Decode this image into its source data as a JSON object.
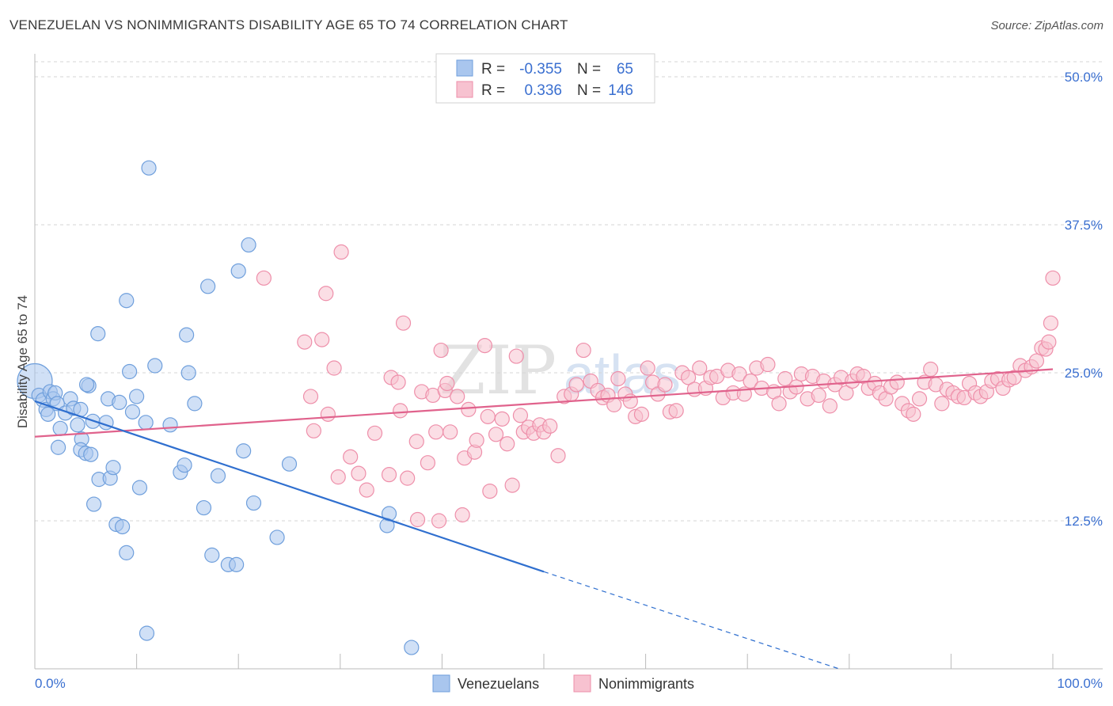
{
  "title": "VENEZUELAN VS NONIMMIGRANTS DISABILITY AGE 65 TO 74 CORRELATION CHART",
  "source": "Source: ZipAtlas.com",
  "watermark": {
    "a": "ZIP",
    "b": "atlas"
  },
  "stats": {
    "series_a": {
      "r_label": "R =",
      "r_value": "-0.355",
      "n_label": "N =",
      "n_value": "65"
    },
    "series_b": {
      "r_label": "R =",
      "r_value": "0.336",
      "n_label": "N =",
      "n_value": "146"
    }
  },
  "colors": {
    "blue_fill": "#a9c6ee",
    "blue_stroke": "#6f9fdc",
    "blue_line": "#2f6fcf",
    "pink_fill": "#f7c2d0",
    "pink_stroke": "#ee8faa",
    "pink_line": "#e0628c",
    "tick_text": "#3a6fd0",
    "grid": "#d5d5d5"
  },
  "chart_data": {
    "type": "scatter",
    "title": "VENEZUELAN VS NONIMMIGRANTS DISABILITY AGE 65 TO 74 CORRELATION CHART",
    "xlabel": "",
    "ylabel": "Disability Age 65 to 74",
    "xlim": [
      0,
      100
    ],
    "ylim": [
      0,
      50
    ],
    "x_tick_labels": [
      "0.0%",
      "100.0%"
    ],
    "y_ticks": [
      12.5,
      25.0,
      37.5,
      50.0
    ],
    "y_tick_labels": [
      "12.5%",
      "25.0%",
      "37.5%",
      "50.0%"
    ],
    "grid": "horizontal dashed",
    "legend_position": "bottom-center",
    "series": [
      {
        "name": "Venezuelans",
        "color": "#a9c6ee",
        "r": -0.355,
        "n": 65,
        "trend": {
          "x0": 0,
          "y0": 22.6,
          "x1": 50,
          "y1": 8.2,
          "dashed_to_x": 79,
          "dashed_to_y": 0
        },
        "points": [
          [
            0.0,
            24.3
          ],
          [
            0.4,
            23.1
          ],
          [
            0.8,
            22.7
          ],
          [
            1.1,
            21.9
          ],
          [
            1.3,
            21.5
          ],
          [
            1.5,
            23.4
          ],
          [
            1.8,
            22.8
          ],
          [
            2.0,
            23.3
          ],
          [
            2.2,
            22.4
          ],
          [
            2.5,
            20.3
          ],
          [
            2.3,
            18.7
          ],
          [
            3.0,
            21.6
          ],
          [
            3.5,
            22.8
          ],
          [
            3.8,
            22.0
          ],
          [
            4.2,
            20.6
          ],
          [
            4.5,
            21.9
          ],
          [
            4.6,
            19.4
          ],
          [
            4.5,
            18.5
          ],
          [
            5.0,
            18.2
          ],
          [
            5.3,
            23.9
          ],
          [
            5.7,
            20.9
          ],
          [
            5.8,
            13.9
          ],
          [
            5.1,
            24.0
          ],
          [
            6.2,
            28.3
          ],
          [
            6.3,
            16.0
          ],
          [
            5.5,
            18.1
          ],
          [
            7.0,
            20.8
          ],
          [
            7.2,
            22.8
          ],
          [
            7.4,
            16.1
          ],
          [
            7.7,
            17.0
          ],
          [
            8.0,
            12.2
          ],
          [
            8.3,
            22.5
          ],
          [
            8.6,
            12.0
          ],
          [
            9.0,
            9.8
          ],
          [
            9.3,
            25.1
          ],
          [
            9.6,
            21.7
          ],
          [
            10.0,
            23.0
          ],
          [
            10.3,
            15.3
          ],
          [
            10.9,
            20.8
          ],
          [
            11.0,
            3.0
          ],
          [
            11.2,
            42.3
          ],
          [
            11.8,
            25.6
          ],
          [
            13.3,
            20.6
          ],
          [
            14.3,
            16.6
          ],
          [
            14.7,
            17.2
          ],
          [
            14.9,
            28.2
          ],
          [
            15.1,
            25.0
          ],
          [
            15.7,
            22.4
          ],
          [
            16.6,
            13.6
          ],
          [
            17.0,
            32.3
          ],
          [
            17.4,
            9.6
          ],
          [
            18.0,
            16.3
          ],
          [
            19.0,
            8.8
          ],
          [
            19.8,
            8.8
          ],
          [
            20.0,
            33.6
          ],
          [
            20.5,
            18.4
          ],
          [
            21.0,
            35.8
          ],
          [
            21.5,
            14.0
          ],
          [
            23.8,
            11.1
          ],
          [
            9.0,
            31.1
          ],
          [
            25.0,
            17.3
          ],
          [
            34.6,
            12.1
          ],
          [
            34.8,
            13.1
          ],
          [
            37.0,
            1.8
          ]
        ]
      },
      {
        "name": "Nonimmigrants",
        "color": "#f7c2d0",
        "r": 0.336,
        "n": 146,
        "trend": {
          "x0": 0,
          "y0": 19.6,
          "x1": 100,
          "y1": 25.3
        },
        "points": [
          [
            22.5,
            33.0
          ],
          [
            26.5,
            27.6
          ],
          [
            27.1,
            23.0
          ],
          [
            27.4,
            20.1
          ],
          [
            28.2,
            27.8
          ],
          [
            28.6,
            31.7
          ],
          [
            28.8,
            21.5
          ],
          [
            29.4,
            25.4
          ],
          [
            29.8,
            16.2
          ],
          [
            30.1,
            35.2
          ],
          [
            31.0,
            17.9
          ],
          [
            31.8,
            16.5
          ],
          [
            32.6,
            15.1
          ],
          [
            33.4,
            19.9
          ],
          [
            34.8,
            16.4
          ],
          [
            35.0,
            24.6
          ],
          [
            35.7,
            24.2
          ],
          [
            35.9,
            21.8
          ],
          [
            36.2,
            29.2
          ],
          [
            36.6,
            16.1
          ],
          [
            37.5,
            19.2
          ],
          [
            37.6,
            12.6
          ],
          [
            38.0,
            23.4
          ],
          [
            38.6,
            17.4
          ],
          [
            39.1,
            23.1
          ],
          [
            39.4,
            20.0
          ],
          [
            39.7,
            12.5
          ],
          [
            39.9,
            26.9
          ],
          [
            40.3,
            23.5
          ],
          [
            40.5,
            24.1
          ],
          [
            40.8,
            20.0
          ],
          [
            41.5,
            23.0
          ],
          [
            42.0,
            13.0
          ],
          [
            42.2,
            17.8
          ],
          [
            42.6,
            21.9
          ],
          [
            43.2,
            18.3
          ],
          [
            43.4,
            19.3
          ],
          [
            44.2,
            27.3
          ],
          [
            44.5,
            21.3
          ],
          [
            44.7,
            15.0
          ],
          [
            45.3,
            19.8
          ],
          [
            45.9,
            21.1
          ],
          [
            46.4,
            19.0
          ],
          [
            46.9,
            15.5
          ],
          [
            47.3,
            26.4
          ],
          [
            47.7,
            21.4
          ],
          [
            48.0,
            20.0
          ],
          [
            48.5,
            20.4
          ],
          [
            49.0,
            19.9
          ],
          [
            49.6,
            20.6
          ],
          [
            50.0,
            20.0
          ],
          [
            50.6,
            20.5
          ],
          [
            51.4,
            18.0
          ],
          [
            52.0,
            23.0
          ],
          [
            52.7,
            23.2
          ],
          [
            53.2,
            24.0
          ],
          [
            53.9,
            26.9
          ],
          [
            54.6,
            24.3
          ],
          [
            55.3,
            23.5
          ],
          [
            55.8,
            22.9
          ],
          [
            56.3,
            23.1
          ],
          [
            56.9,
            22.3
          ],
          [
            57.3,
            24.5
          ],
          [
            58.0,
            23.2
          ],
          [
            58.5,
            22.6
          ],
          [
            59.0,
            21.3
          ],
          [
            59.6,
            21.5
          ],
          [
            60.2,
            25.4
          ],
          [
            60.7,
            24.2
          ],
          [
            61.2,
            23.2
          ],
          [
            61.9,
            24.0
          ],
          [
            62.4,
            21.7
          ],
          [
            63.0,
            21.8
          ],
          [
            63.6,
            25.0
          ],
          [
            64.2,
            24.6
          ],
          [
            64.8,
            23.6
          ],
          [
            65.3,
            25.4
          ],
          [
            65.9,
            23.7
          ],
          [
            66.4,
            24.6
          ],
          [
            67.0,
            24.7
          ],
          [
            67.6,
            22.9
          ],
          [
            68.1,
            25.2
          ],
          [
            68.6,
            23.3
          ],
          [
            69.2,
            24.9
          ],
          [
            69.7,
            23.2
          ],
          [
            70.3,
            24.3
          ],
          [
            70.9,
            25.4
          ],
          [
            71.4,
            23.7
          ],
          [
            72.0,
            25.7
          ],
          [
            72.6,
            23.4
          ],
          [
            73.1,
            22.4
          ],
          [
            73.7,
            24.5
          ],
          [
            74.2,
            23.4
          ],
          [
            74.8,
            23.8
          ],
          [
            75.3,
            24.9
          ],
          [
            75.9,
            22.8
          ],
          [
            76.4,
            24.7
          ],
          [
            77.0,
            23.1
          ],
          [
            77.5,
            24.3
          ],
          [
            78.1,
            22.2
          ],
          [
            78.6,
            24.0
          ],
          [
            79.2,
            24.6
          ],
          [
            79.7,
            23.3
          ],
          [
            80.3,
            24.3
          ],
          [
            80.8,
            24.9
          ],
          [
            81.4,
            24.7
          ],
          [
            81.9,
            23.7
          ],
          [
            82.5,
            24.1
          ],
          [
            83.0,
            23.3
          ],
          [
            83.6,
            22.8
          ],
          [
            84.1,
            23.8
          ],
          [
            84.7,
            24.2
          ],
          [
            85.2,
            22.4
          ],
          [
            85.8,
            21.8
          ],
          [
            86.3,
            21.5
          ],
          [
            86.9,
            22.8
          ],
          [
            87.4,
            24.2
          ],
          [
            88.0,
            25.3
          ],
          [
            88.5,
            24.0
          ],
          [
            89.1,
            22.4
          ],
          [
            89.6,
            23.6
          ],
          [
            90.2,
            23.3
          ],
          [
            90.7,
            23.0
          ],
          [
            91.3,
            22.9
          ],
          [
            91.8,
            24.1
          ],
          [
            92.4,
            23.3
          ],
          [
            92.9,
            23.0
          ],
          [
            93.5,
            23.4
          ],
          [
            94.0,
            24.3
          ],
          [
            94.6,
            24.5
          ],
          [
            95.1,
            23.7
          ],
          [
            95.7,
            24.4
          ],
          [
            96.2,
            24.6
          ],
          [
            96.8,
            25.6
          ],
          [
            97.3,
            25.2
          ],
          [
            97.9,
            25.5
          ],
          [
            98.4,
            26.0
          ],
          [
            98.9,
            27.1
          ],
          [
            99.3,
            27.0
          ],
          [
            99.6,
            27.6
          ],
          [
            99.8,
            29.2
          ],
          [
            100.0,
            33.0
          ]
        ]
      }
    ]
  }
}
